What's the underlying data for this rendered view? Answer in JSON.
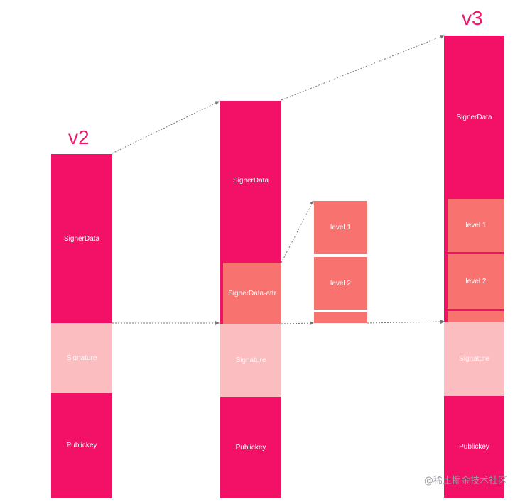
{
  "labels": {
    "v2": "v2",
    "v3": "v3"
  },
  "blocks": {
    "signer_data": "SignerData",
    "signer_data_attr": "SignerData-attr",
    "signature": "Signature",
    "public_key": "Publickey",
    "level_1": "level 1",
    "level_2": "level 2"
  },
  "watermark": "@稀土掘金技术社区",
  "colors": {
    "dark": "#f21166",
    "mid": "#f8736f",
    "light": "#fbbdc0",
    "version_text": "#f0166b"
  }
}
